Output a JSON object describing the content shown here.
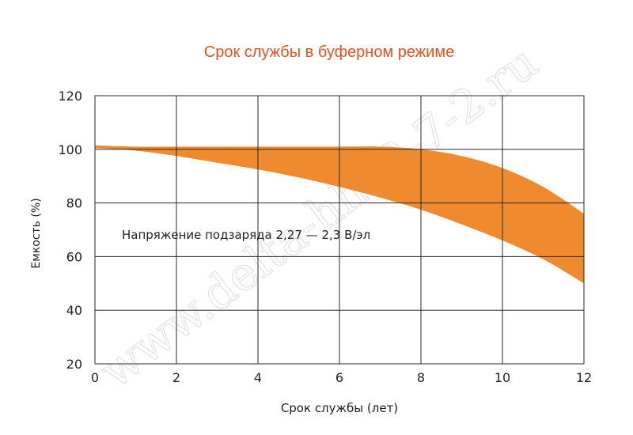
{
  "watermark": "www.delta-hh12-7-2.ru",
  "colors": {
    "band": "#F08A2E",
    "title": "#E8501E",
    "grid": "#2a2a2a",
    "text": "#222222",
    "watermark": "#e2e2e2"
  },
  "chart_data": {
    "type": "area",
    "title": "Срок службы в буферном режиме",
    "xlabel": "Срок службы (лет)",
    "ylabel": "Емкость (%)",
    "xlim": [
      0,
      12
    ],
    "ylim": [
      20,
      120
    ],
    "x_ticks": [
      0,
      2,
      4,
      6,
      8,
      10,
      12
    ],
    "y_ticks": [
      20,
      40,
      60,
      80,
      100,
      120
    ],
    "grid": true,
    "annotation": "Напряжение подзаряда 2,27 — 2,3 В/эл",
    "series": [
      {
        "x": [
          0,
          1,
          2,
          3,
          4,
          5,
          6,
          7,
          8,
          9,
          10,
          11,
          12
        ],
        "upper": [
          101.5,
          101,
          101,
          101,
          101,
          101,
          101,
          101,
          100,
          97.5,
          93,
          86,
          76
        ],
        "lower": [
          100.5,
          99.5,
          97.5,
          95,
          92.5,
          89.5,
          86,
          82,
          77.5,
          72,
          66,
          59,
          50
        ]
      }
    ]
  }
}
